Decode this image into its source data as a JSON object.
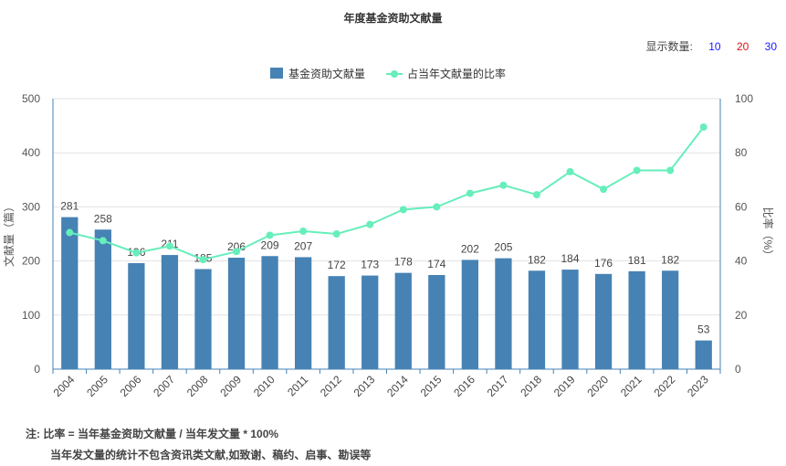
{
  "header": {
    "title": "年度基金资助文献量",
    "display_count_label": "显示数量:",
    "display_count_options": [
      {
        "label": "10",
        "color": "#1a1aff"
      },
      {
        "label": "20",
        "color": "#e01010"
      },
      {
        "label": "30",
        "color": "#1a1aff"
      }
    ]
  },
  "notes": {
    "line1": "注:  比率 = 当年基金资助文献量 / 当年发文量 * 100%",
    "line2": "当年发文量的统计不包含资讯类文献,如致谢、稿约、启事、勘误等"
  },
  "chart_data": {
    "type": "bar+line",
    "title": "年度基金资助文献量",
    "categories": [
      "2004",
      "2005",
      "2006",
      "2007",
      "2008",
      "2009",
      "2010",
      "2011",
      "2012",
      "2013",
      "2014",
      "2015",
      "2016",
      "2017",
      "2018",
      "2019",
      "2020",
      "2021",
      "2022",
      "2023"
    ],
    "series": [
      {
        "name": "基金资助文献量",
        "type": "bar",
        "axis": "left",
        "color": "#4682b4",
        "values": [
          281,
          258,
          196,
          211,
          185,
          206,
          209,
          207,
          172,
          173,
          178,
          174,
          202,
          205,
          182,
          184,
          176,
          181,
          182,
          53
        ]
      },
      {
        "name": "占当年文献量的比率",
        "type": "line",
        "axis": "right",
        "color": "#66eebb",
        "values": [
          50.5,
          47.5,
          43,
          45.5,
          40.5,
          43.5,
          49.5,
          51,
          50,
          53.5,
          59,
          60,
          65,
          68,
          64.5,
          73,
          66.5,
          73.5,
          73.5,
          89.5
        ]
      }
    ],
    "ylabel_left": "文献量（篇）",
    "ylabel_right": "比率（%）",
    "ylim_left": [
      0,
      500
    ],
    "ylim_right": [
      0,
      100
    ],
    "yticks_left": [
      "0",
      "100",
      "200",
      "300",
      "400",
      "500"
    ],
    "yticks_right": [
      "0",
      "20",
      "40",
      "60",
      "80",
      "100"
    ],
    "grid": true,
    "legend_position": "top-center"
  }
}
